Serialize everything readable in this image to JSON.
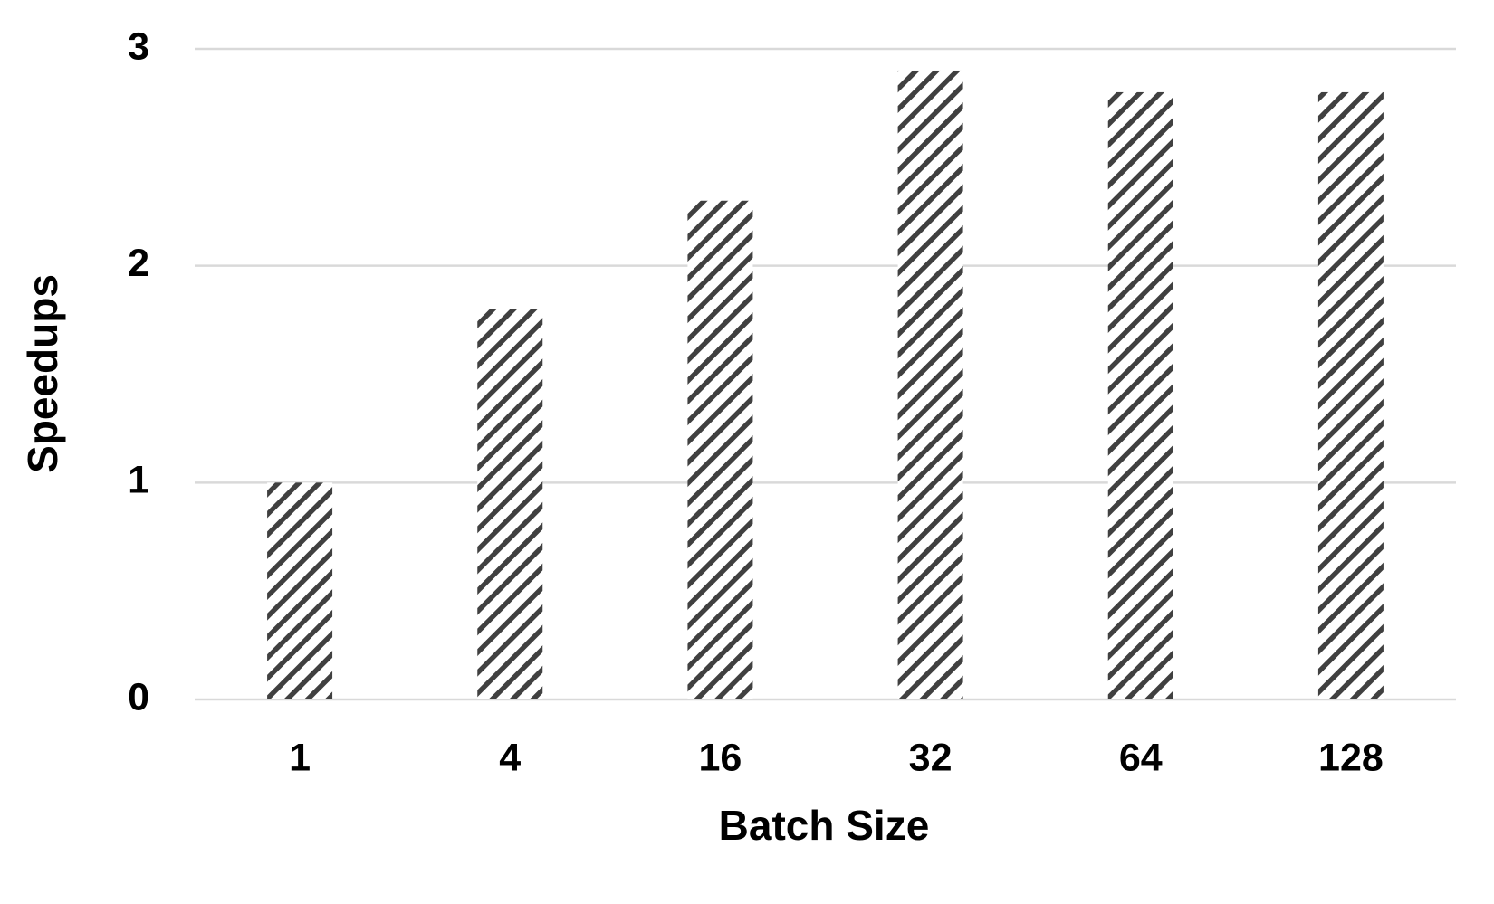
{
  "chart_data": {
    "type": "bar",
    "x_label": "Batch Size",
    "y_label": "Speedups",
    "categories": [
      "1",
      "4",
      "16",
      "32",
      "64",
      "128"
    ],
    "values": [
      1,
      1.8,
      2.3,
      2.9,
      2.8,
      2.8
    ],
    "color": "#404040",
    "ylim": [
      0,
      3
    ],
    "yticks": [
      0,
      1,
      2,
      3
    ],
    "grid": true
  }
}
